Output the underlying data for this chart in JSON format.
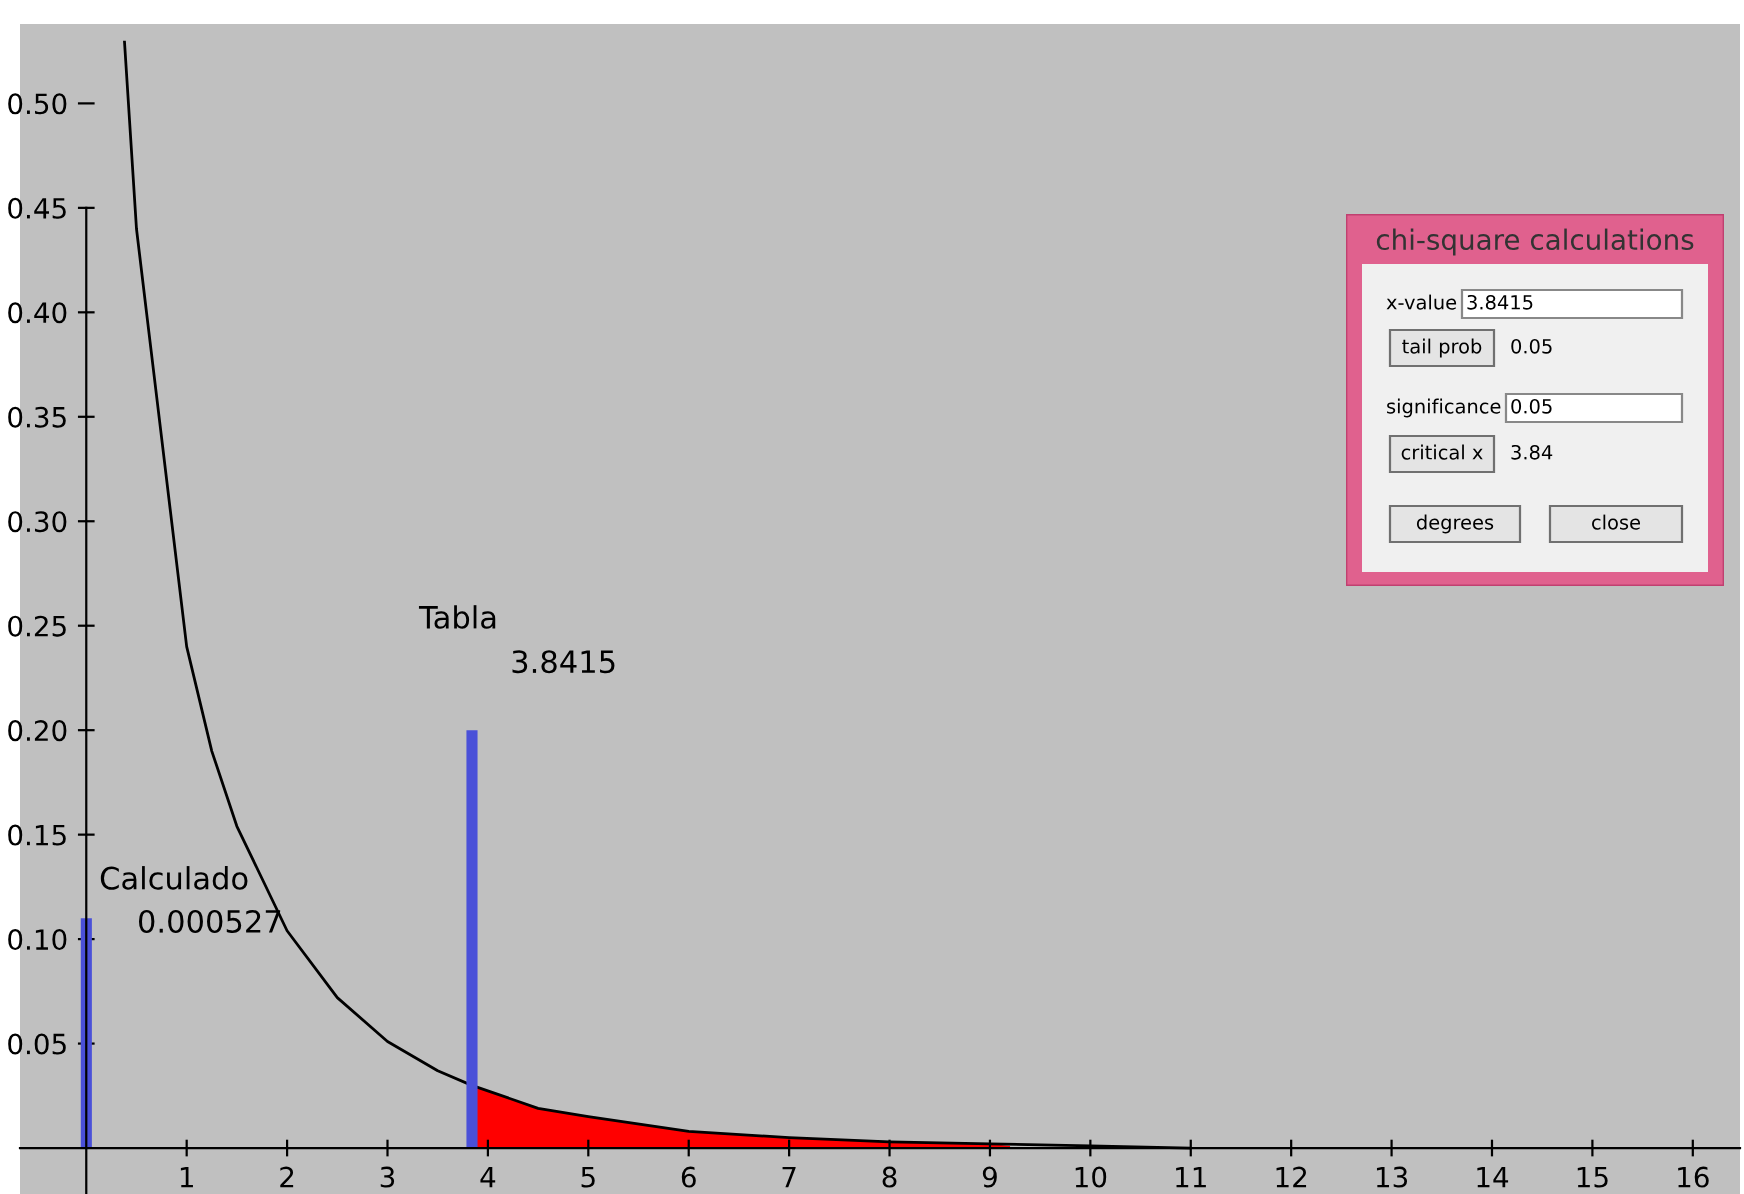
{
  "chart_data": [
    {
      "type": "line",
      "xlim": [
        -0.66,
        16.47
      ],
      "ylim": [
        -0.022,
        0.538
      ],
      "xticks": [
        1,
        2,
        3,
        4,
        5,
        6,
        7,
        8,
        9,
        10,
        11,
        12,
        13,
        14,
        15,
        16
      ],
      "yticks": [
        0.05,
        {
          "value": 0.1,
          "label": "0.10"
        },
        0.15,
        {
          "value": 0.2,
          "label": "0.20"
        },
        0.25,
        {
          "value": 0.3,
          "label": "0.30"
        },
        0.35,
        {
          "value": 0.4,
          "label": "0.40"
        },
        0.45,
        {
          "value": 0.5,
          "label": "0.50"
        }
      ],
      "series": [
        {
          "type": "area",
          "color": "#ff0000",
          "x": [
            3.84,
            4.5,
            5,
            6,
            7,
            8,
            9,
            9.2
          ],
          "values": [
            0.03,
            0.019,
            0.015,
            0.008,
            0.005,
            0.003,
            0.002,
            0.001
          ]
        },
        {
          "type": "line",
          "color": "#000000",
          "x": [
            0.38,
            0.5,
            0.6,
            0.75,
            1,
            1.25,
            1.5,
            2,
            2.5,
            3,
            3.5,
            3.84,
            4.5,
            5,
            6,
            7,
            8,
            9,
            10,
            11
          ],
          "values": [
            0.53,
            0.44,
            0.4,
            0.34,
            0.24,
            0.19,
            0.154,
            0.104,
            0.072,
            0.051,
            0.037,
            0.03,
            0.019,
            0.015,
            0.008,
            0.005,
            0.003,
            0.002,
            0.001,
            0.0
          ]
        },
        {
          "type": "line",
          "color": "#4a50d8",
          "x": [
            0.000527,
            0.000527
          ],
          "values": [
            0,
            0.11
          ]
        },
        {
          "type": "line",
          "color": "#4a50d8",
          "x": [
            3.8415,
            3.8415
          ],
          "values": [
            0,
            0.2
          ]
        }
      ],
      "annotations": [
        "Calculado",
        "0.000527",
        "Tabla",
        "3.8415"
      ],
      "grid": false,
      "legend": false
    },
    {
      "type": "other",
      "title": "chi-square calculations",
      "annotations": [
        "x-value",
        "3.8415",
        "tail prob",
        "0.05",
        "significance",
        "0.05",
        "critical x",
        "3.84",
        "degrees",
        "close"
      ]
    }
  ]
}
